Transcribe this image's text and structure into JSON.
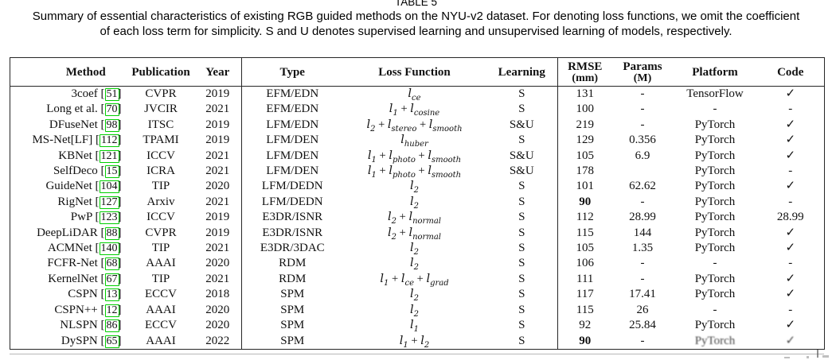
{
  "caption": {
    "label": "TABLE 5",
    "line1": "Summary of essential characteristics of existing RGB guided methods on the NYU-v2 dataset. For denoting loss functions, we omit the coefficient",
    "line2": "of each loss term for simplicity. S and U denotes supervised learning and unsupervised learning of models, respectively."
  },
  "table": {
    "accent_green": "#00cf00",
    "headers": [
      {
        "label": "Method"
      },
      {
        "label": "Publication"
      },
      {
        "label": "Year"
      },
      {
        "label": "Type"
      },
      {
        "label": "Loss Function"
      },
      {
        "label": "Learning"
      },
      {
        "label": "RMSE",
        "sub": "(mm)"
      },
      {
        "label": "Params",
        "sub": "(M)"
      },
      {
        "label": "Platform"
      },
      {
        "label": "Code"
      }
    ],
    "rows": [
      {
        "method": "3coef",
        "cite": "51",
        "publication": "CVPR",
        "year": "2019",
        "type": "EFM/EDN",
        "loss": "l_ce",
        "learning": "S",
        "rmse": "131",
        "rmse_bold": false,
        "params": "-",
        "platform": "TensorFlow",
        "code": "✓"
      },
      {
        "method": "Long et al.",
        "cite": "70",
        "publication": "JVCIR",
        "year": "2021",
        "type": "EFM/EDN",
        "loss": "l_1 + l_cosine",
        "learning": "S",
        "rmse": "100",
        "rmse_bold": false,
        "params": "-",
        "platform": "-",
        "code": "-"
      },
      {
        "method": "DFuseNet",
        "cite": "98",
        "publication": "ITSC",
        "year": "2019",
        "type": "LFM/EDN",
        "loss": "l_2 + l_stereo + l_smooth",
        "learning": "S&U",
        "rmse": "219",
        "rmse_bold": false,
        "params": "-",
        "platform": "PyTorch",
        "code": "✓"
      },
      {
        "method": "MS-Net[LF]",
        "cite": "112",
        "publication": "TPAMI",
        "year": "2019",
        "type": "LFM/DEN",
        "loss": "l_huber",
        "learning": "S",
        "rmse": "129",
        "rmse_bold": false,
        "params": "0.356",
        "platform": "PyTorch",
        "code": "✓"
      },
      {
        "method": "KBNet",
        "cite": "121",
        "publication": "ICCV",
        "year": "2021",
        "type": "LFM/DEN",
        "loss": "l_1 + l_photo + l_smooth",
        "learning": "S&U",
        "rmse": "105",
        "rmse_bold": false,
        "params": "6.9",
        "platform": "PyTorch",
        "code": "✓"
      },
      {
        "method": "SelfDeco",
        "cite": "15",
        "publication": "ICRA",
        "year": "2021",
        "type": "LFM/DEN",
        "loss": "l_1 + l_photo + l_smooth",
        "learning": "S&U",
        "rmse": "178",
        "rmse_bold": false,
        "params": "",
        "platform": "PyTorch",
        "code": "-"
      },
      {
        "method": "GuideNet",
        "cite": "104",
        "publication": "TIP",
        "year": "2020",
        "type": "LFM/DEDN",
        "loss": "l_2",
        "learning": "S",
        "rmse": "101",
        "rmse_bold": false,
        "params": "62.62",
        "platform": "PyTorch",
        "code": "✓"
      },
      {
        "method": "RigNet",
        "cite": "127",
        "publication": "Arxiv",
        "year": "2021",
        "type": "LFM/DEDN",
        "loss": "l_2",
        "learning": "S",
        "rmse": "90",
        "rmse_bold": true,
        "params": "-",
        "platform": "PyTorch",
        "code": "-"
      },
      {
        "method": "PwP",
        "cite": "123",
        "publication": "ICCV",
        "year": "2019",
        "type": "E3DR/ISNR",
        "loss": "l_2 + l_normal",
        "learning": "S",
        "rmse": "112",
        "rmse_bold": false,
        "params": "28.99",
        "platform": "PyTorch",
        "code": "28.99"
      },
      {
        "method": "DeepLiDAR",
        "cite": "88",
        "publication": "CVPR",
        "year": "2019",
        "type": "E3DR/ISNR",
        "loss": "l_2 + l_normal",
        "learning": "S",
        "rmse": "115",
        "rmse_bold": false,
        "params": "144",
        "platform": "PyTorch",
        "code": "✓"
      },
      {
        "method": "ACMNet",
        "cite": "140",
        "publication": "TIP",
        "year": "2021",
        "type": "E3DR/3DAC",
        "loss": "l_2",
        "learning": "S",
        "rmse": "105",
        "rmse_bold": false,
        "params": "1.35",
        "platform": "PyTorch",
        "code": "✓"
      },
      {
        "method": "FCFR-Net",
        "cite": "68",
        "publication": "AAAI",
        "year": "2020",
        "type": "RDM",
        "loss": "l_2",
        "learning": "S",
        "rmse": "106",
        "rmse_bold": false,
        "params": "-",
        "platform": "-",
        "code": "-"
      },
      {
        "method": "KernelNet",
        "cite": "67",
        "publication": "TIP",
        "year": "2021",
        "type": "RDM",
        "loss": "l_1 + l_ce + l_grad",
        "learning": "S",
        "rmse": "111",
        "rmse_bold": false,
        "params": "-",
        "platform": "PyTorch",
        "code": "✓"
      },
      {
        "method": "CSPN",
        "cite": "13",
        "publication": "ECCV",
        "year": "2018",
        "type": "SPM",
        "loss": "l_2",
        "learning": "S",
        "rmse": "117",
        "rmse_bold": false,
        "params": "17.41",
        "platform": "PyTorch",
        "code": "✓"
      },
      {
        "method": "CSPN++",
        "cite": "12",
        "publication": "AAAI",
        "year": "2020",
        "type": "SPM",
        "loss": "l_2",
        "learning": "S",
        "rmse": "115",
        "rmse_bold": false,
        "params": "26",
        "platform": "-",
        "code": "-"
      },
      {
        "method": "NLSPN",
        "cite": "86",
        "publication": "ECCV",
        "year": "2020",
        "type": "SPM",
        "loss": "l_1",
        "learning": "S",
        "rmse": "92",
        "rmse_bold": false,
        "params": "25.84",
        "platform": "PyTorch",
        "code": "✓"
      },
      {
        "method": "DySPN",
        "cite": "65",
        "publication": "AAAI",
        "year": "2022",
        "type": "SPM",
        "loss": "l_1 + l_2",
        "learning": "S",
        "rmse": "90",
        "rmse_bold": true,
        "params": "-",
        "platform": "PyTorch",
        "code": "✓",
        "degraded": true
      }
    ]
  }
}
